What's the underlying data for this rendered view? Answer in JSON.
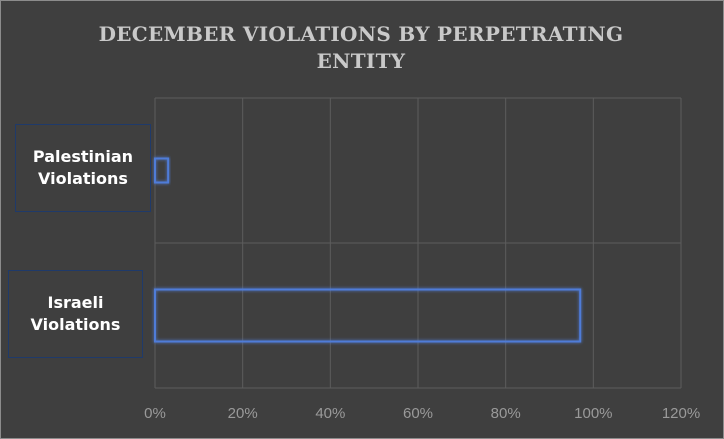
{
  "chart_data": {
    "type": "bar",
    "orientation": "horizontal",
    "title": "DECEMBER VIOLATIONS BY PERPETRATING ENTITY",
    "categories": [
      "Palestinian Violations",
      "Israeli Violations"
    ],
    "values": [
      3,
      97
    ],
    "xlim": [
      0,
      120
    ],
    "x_ticks": [
      "0%",
      "20%",
      "40%",
      "60%",
      "80%",
      "100%",
      "120%"
    ],
    "xlabel": "",
    "ylabel": "",
    "grid": true,
    "colors": {
      "background": "#3f3f3f",
      "bar_outline": "#4f7bd8",
      "grid": "#5c5c5c"
    }
  }
}
